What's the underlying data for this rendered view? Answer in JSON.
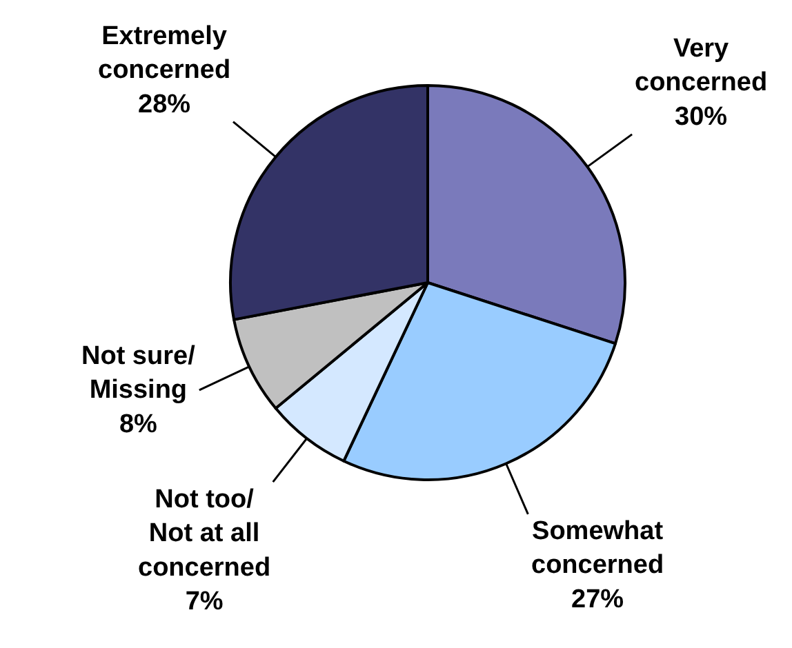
{
  "chart_data": {
    "type": "pie",
    "categories": [
      "Very concerned",
      "Somewhat concerned",
      "Not too/ Not at all concerned",
      "Not sure/ Missing",
      "Extremely concerned"
    ],
    "values": [
      30,
      27,
      7,
      8,
      28
    ],
    "value_labels": [
      "30%",
      "27%",
      "7%",
      "8%",
      "28%"
    ],
    "colors": [
      "#7a7abb",
      "#99ccff",
      "#d4e8ff",
      "#c0c0c0",
      "#333366"
    ],
    "legend": false
  }
}
